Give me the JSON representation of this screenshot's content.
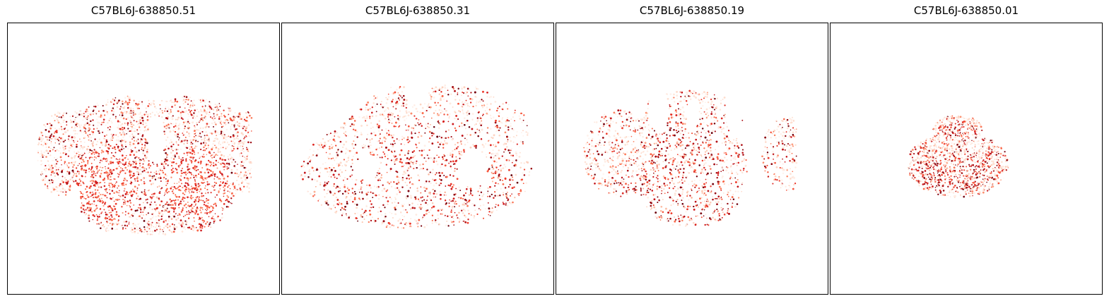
{
  "chart_data": {
    "type": "scatter",
    "colormap": "Reds",
    "axes_ticks": false,
    "grid": false,
    "panels": [
      {
        "title": "C57BL6J-638850.51"
      },
      {
        "title": "C57BL6J-638850.31"
      },
      {
        "title": "C57BL6J-638850.19"
      },
      {
        "title": "C57BL6J-638850.01"
      }
    ]
  }
}
